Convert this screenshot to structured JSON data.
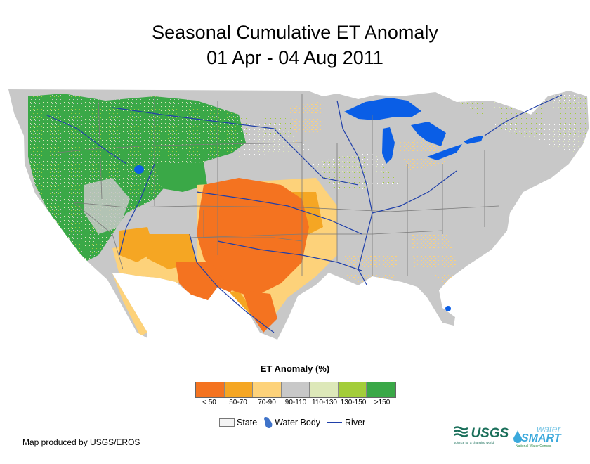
{
  "title": {
    "line1": "Seasonal Cumulative ET Anomaly",
    "line2": "01 Apr - 04 Aug 2011"
  },
  "legend": {
    "title": "ET Anomaly (%)",
    "classes": [
      {
        "label": "< 50",
        "color": "#f47320"
      },
      {
        "label": "50-70",
        "color": "#f5a623"
      },
      {
        "label": "70-90",
        "color": "#fdd27a"
      },
      {
        "label": "90-110",
        "color": "#c8c8c8"
      },
      {
        "label": "110-130",
        "color": "#dde8b9"
      },
      {
        "label": "130-150",
        "color": "#a3cd3a"
      },
      {
        "label": ">150",
        "color": "#3aa847"
      }
    ],
    "symbols": {
      "state": "State",
      "water_body": "Water Body",
      "river": "River"
    }
  },
  "colors": {
    "water": "#0a5ee6",
    "river": "#1f3fa9",
    "state_border": "#7a7a7a"
  },
  "credit": "Map produced by USGS/EROS",
  "logos": {
    "usgs": "USGS",
    "usgs_tagline": "science for a changing world",
    "watersmart_water": "water",
    "watersmart_smart": "SMART",
    "watersmart_tagline": "National Water Census"
  }
}
